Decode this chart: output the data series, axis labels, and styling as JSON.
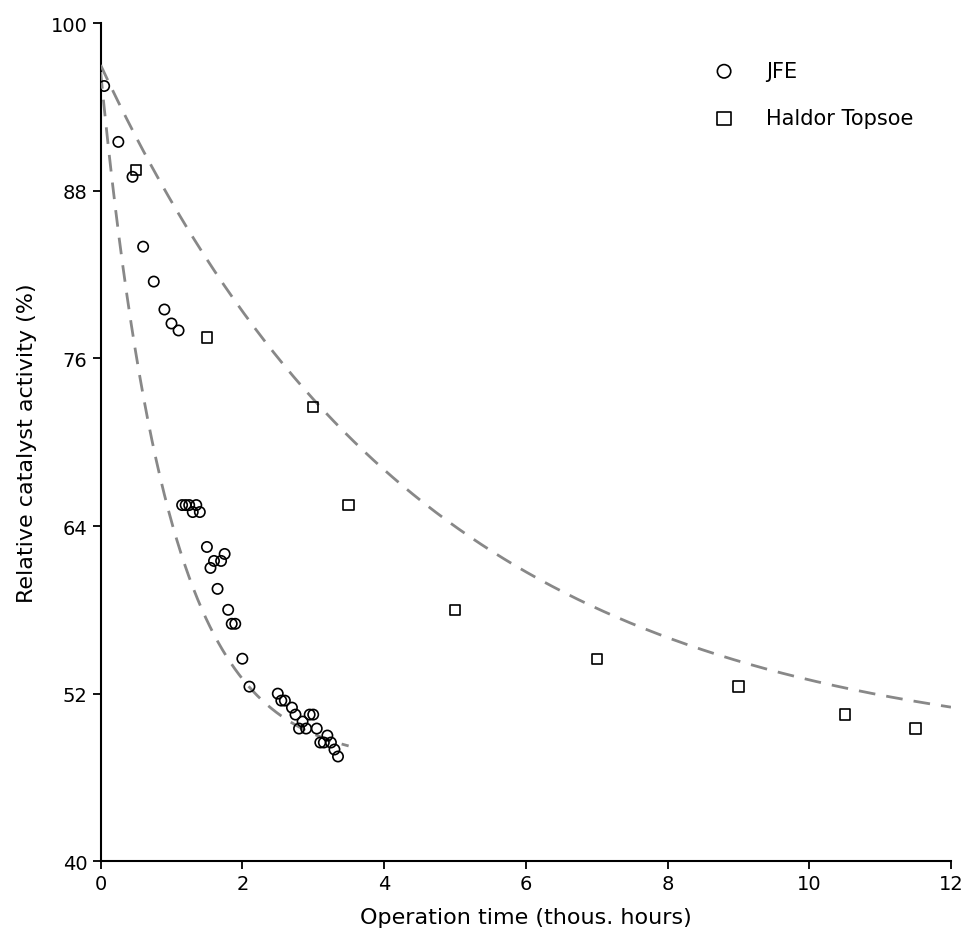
{
  "title": "",
  "xlabel": "Operation time (thous. hours)",
  "ylabel": "Relative catalyst activity (%)",
  "xlim": [
    0,
    12
  ],
  "ylim": [
    40,
    100
  ],
  "xticks": [
    0,
    2,
    4,
    6,
    8,
    10,
    12
  ],
  "yticks": [
    40,
    52,
    64,
    76,
    88,
    100
  ],
  "background_color": "#ffffff",
  "dash_color": "#888888",
  "jfe_x": [
    0.05,
    0.25,
    0.45,
    0.6,
    0.75,
    0.9,
    1.0,
    1.1,
    1.15,
    1.2,
    1.25,
    1.3,
    1.35,
    1.4,
    1.5,
    1.55,
    1.6,
    1.65,
    1.7,
    1.75,
    1.8,
    1.85,
    1.9,
    2.0,
    2.1,
    2.5,
    2.55,
    2.6,
    2.7,
    2.75,
    2.8,
    2.85,
    2.9,
    2.95,
    3.0,
    3.05,
    3.1,
    3.15,
    3.2,
    3.25,
    3.3,
    3.35
  ],
  "jfe_y": [
    95.5,
    91.5,
    89.0,
    84.0,
    81.5,
    79.5,
    78.5,
    78.0,
    65.5,
    65.5,
    65.5,
    65.0,
    65.5,
    65.0,
    62.5,
    61.0,
    61.5,
    59.5,
    61.5,
    62.0,
    58.0,
    57.0,
    57.0,
    54.5,
    52.5,
    52.0,
    51.5,
    51.5,
    51.0,
    50.5,
    49.5,
    50.0,
    49.5,
    50.5,
    50.5,
    49.5,
    48.5,
    48.5,
    49.0,
    48.5,
    48.0,
    47.5
  ],
  "haldor_x": [
    0.5,
    1.5,
    3.0,
    3.5,
    5.0,
    7.0,
    9.0,
    10.5,
    11.5
  ],
  "haldor_y": [
    89.5,
    77.5,
    72.5,
    65.5,
    58.0,
    54.5,
    52.5,
    50.5,
    49.5
  ],
  "jfe_fit_base": 47.0,
  "jfe_fit_amp": 49.5,
  "jfe_fit_k": 1.05,
  "haldor_fit_base": 47.5,
  "haldor_fit_amp": 49.5,
  "haldor_fit_k": 0.22,
  "legend_labels": [
    "JFE",
    "Haldor Topsoe"
  ]
}
